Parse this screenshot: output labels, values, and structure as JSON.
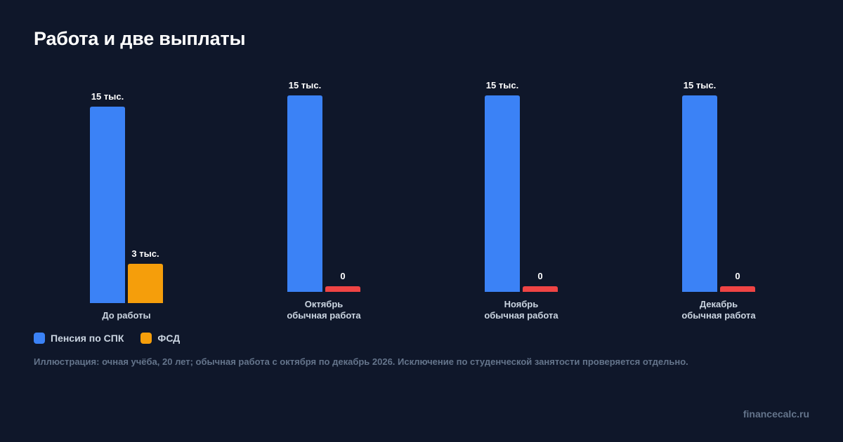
{
  "title": "Работа и две выплаты",
  "colors": {
    "pension": "#3b82f6",
    "fsd": "#f59e0b",
    "zero": "#ef4444"
  },
  "chart_data": {
    "type": "bar",
    "groups": [
      {
        "label_lines": [
          "До работы"
        ],
        "bars": [
          {
            "series": "Пенсия по СПК",
            "value": 15,
            "label": "15 тыс."
          },
          {
            "series": "ФСД",
            "value": 3,
            "label": "3 тыс."
          }
        ]
      },
      {
        "label_lines": [
          "Октябрь",
          "обычная работа"
        ],
        "bars": [
          {
            "series": "Пенсия по СПК",
            "value": 15,
            "label": "15 тыс."
          },
          {
            "series": "ФСД",
            "value": 0,
            "label": "0"
          }
        ]
      },
      {
        "label_lines": [
          "Ноябрь",
          "обычная работа"
        ],
        "bars": [
          {
            "series": "Пенсия по СПК",
            "value": 15,
            "label": "15 тыс."
          },
          {
            "series": "ФСД",
            "value": 0,
            "label": "0"
          }
        ]
      },
      {
        "label_lines": [
          "Декабрь",
          "обычная работа"
        ],
        "bars": [
          {
            "series": "Пенсия по СПК",
            "value": 15,
            "label": "15 тыс."
          },
          {
            "series": "ФСД",
            "value": 0,
            "label": "0"
          }
        ]
      }
    ],
    "series": [
      {
        "name": "Пенсия по СПК"
      },
      {
        "name": "ФСД"
      }
    ],
    "ylim": [
      0,
      15
    ],
    "grid": false,
    "legend_position": "bottom-left"
  },
  "legend": {
    "pension_label": "Пенсия по СПК",
    "fsd_label": "ФСД"
  },
  "note": "Иллюстрация: очная учёба, 20 лет; обычная работа с октября по декабрь 2026. Исключение по студенческой занятости проверяется отдельно.",
  "footer": "financecalc.ru"
}
